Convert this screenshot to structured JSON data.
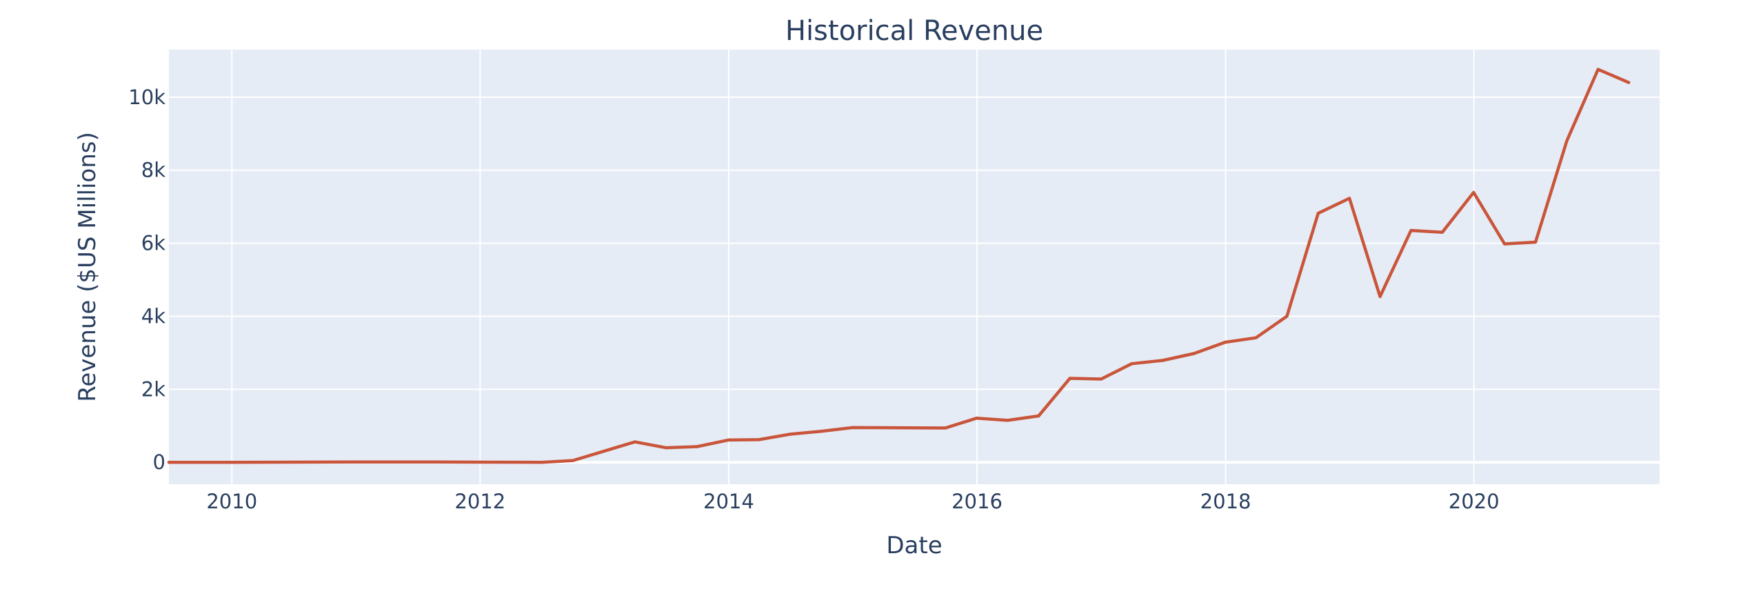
{
  "chart_data": {
    "type": "line",
    "title": "Historical Revenue",
    "xlabel": "Date",
    "ylabel": "Revenue ($US Millions)",
    "x_axis": {
      "type": "date",
      "range": [
        "2009-06-30",
        "2021-06-30"
      ],
      "ticks": [
        {
          "value": "2010-01-01",
          "label": "2010"
        },
        {
          "value": "2012-01-01",
          "label": "2012"
        },
        {
          "value": "2014-01-01",
          "label": "2014"
        },
        {
          "value": "2016-01-01",
          "label": "2016"
        },
        {
          "value": "2018-01-01",
          "label": "2018"
        },
        {
          "value": "2020-01-01",
          "label": "2020"
        }
      ]
    },
    "y_axis": {
      "range": [
        -600,
        11300
      ],
      "ticks": [
        {
          "value": 0,
          "label": "0"
        },
        {
          "value": 2000,
          "label": "2k"
        },
        {
          "value": 4000,
          "label": "4k"
        },
        {
          "value": 6000,
          "label": "6k"
        },
        {
          "value": 8000,
          "label": "8k"
        },
        {
          "value": 10000,
          "label": "10k"
        }
      ]
    },
    "grid": true,
    "colors": {
      "plot_background": "#e5ecf6",
      "grid": "#ffffff",
      "series": "#c9553a",
      "text": "#2a3f5f"
    },
    "series": [
      {
        "points": [
          {
            "x": "2009-06-30",
            "y": 0
          },
          {
            "x": "2009-12-31",
            "y": 0
          },
          {
            "x": "2010-06-30",
            "y": 5
          },
          {
            "x": "2010-12-31",
            "y": 10
          },
          {
            "x": "2011-06-30",
            "y": 10
          },
          {
            "x": "2011-12-31",
            "y": 5
          },
          {
            "x": "2012-06-30",
            "y": 0
          },
          {
            "x": "2012-09-30",
            "y": 50
          },
          {
            "x": "2013-03-31",
            "y": 560
          },
          {
            "x": "2013-06-30",
            "y": 400
          },
          {
            "x": "2013-09-30",
            "y": 430
          },
          {
            "x": "2013-12-31",
            "y": 610
          },
          {
            "x": "2014-03-31",
            "y": 620
          },
          {
            "x": "2014-06-30",
            "y": 770
          },
          {
            "x": "2014-09-30",
            "y": 850
          },
          {
            "x": "2014-12-31",
            "y": 950
          },
          {
            "x": "2015-09-30",
            "y": 940
          },
          {
            "x": "2015-12-31",
            "y": 1210
          },
          {
            "x": "2016-03-31",
            "y": 1150
          },
          {
            "x": "2016-06-30",
            "y": 1270
          },
          {
            "x": "2016-09-30",
            "y": 2300
          },
          {
            "x": "2016-12-31",
            "y": 2280
          },
          {
            "x": "2017-03-31",
            "y": 2700
          },
          {
            "x": "2017-06-30",
            "y": 2790
          },
          {
            "x": "2017-09-30",
            "y": 2980
          },
          {
            "x": "2017-12-31",
            "y": 3290
          },
          {
            "x": "2018-03-31",
            "y": 3410
          },
          {
            "x": "2018-06-30",
            "y": 4000
          },
          {
            "x": "2018-09-30",
            "y": 6820
          },
          {
            "x": "2018-12-31",
            "y": 7230
          },
          {
            "x": "2019-03-31",
            "y": 4540
          },
          {
            "x": "2019-06-30",
            "y": 6350
          },
          {
            "x": "2019-09-30",
            "y": 6300
          },
          {
            "x": "2019-12-31",
            "y": 7390
          },
          {
            "x": "2020-03-31",
            "y": 5980
          },
          {
            "x": "2020-06-30",
            "y": 6030
          },
          {
            "x": "2020-09-30",
            "y": 8800
          },
          {
            "x": "2020-12-31",
            "y": 10760
          },
          {
            "x": "2021-03-31",
            "y": 10400
          }
        ]
      }
    ]
  }
}
